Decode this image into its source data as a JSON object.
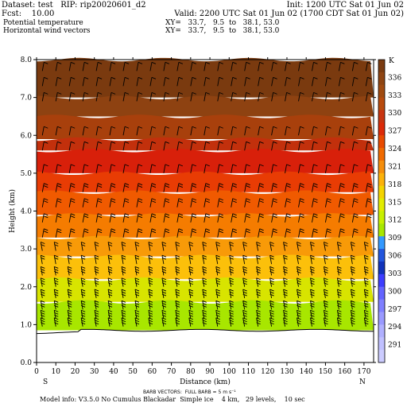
{
  "header": {
    "dataset": "Dataset: test   RIP: rip20020601_d2",
    "init": "Init: 1200 UTC Sat 01 Jun 02",
    "fcst": "Fcst:    10.00",
    "valid": "Valid: 2200 UTC Sat 01 Jun 02 (1700 CDT Sat 01 Jun 02)",
    "field1": "Potential temperature",
    "field1_xy": "XY=   33.7,   9.5  to   38.1, 53.0",
    "field2": "Horizontal wind vectors",
    "field2_xy": "XY=   33.7,   9.5  to   38.1, 53.0"
  },
  "footer": {
    "barb_note": "BARB VECTORS:  FULL BARB = 5 m s⁻¹",
    "model_info": "Model info: V3.5.0 No Cumulus Blackadar  Simple ice    4 km,   29 levels,    10 sec"
  },
  "chart_data": {
    "type": "heatmap",
    "title": "Potential temperature",
    "xlabel": "Distance (km)",
    "ylabel": "Height (km)",
    "xlim": [
      0,
      175
    ],
    "ylim": [
      0,
      8.0
    ],
    "x_ticks": [
      "0",
      "10",
      "20",
      "30",
      "40",
      "50",
      "60",
      "70",
      "80",
      "90",
      "100",
      "110",
      "120",
      "130",
      "140",
      "150",
      "160",
      "170"
    ],
    "x_tick_values": [
      0,
      10,
      20,
      30,
      40,
      50,
      60,
      70,
      80,
      90,
      100,
      110,
      120,
      130,
      140,
      150,
      160,
      170
    ],
    "y_ticks": [
      "0.0",
      "1.0",
      "2.0",
      "3.0",
      "4.0",
      "5.0",
      "6.0",
      "7.0",
      "8.0"
    ],
    "y_tick_values": [
      0,
      1,
      2,
      3,
      4,
      5,
      6,
      7,
      8
    ],
    "x_end_labels": {
      "left": "S",
      "right": "N"
    },
    "colorbar": {
      "unit": "K",
      "labels": [
        "336",
        "333",
        "330",
        "327",
        "324",
        "321",
        "318",
        "315",
        "312",
        "309",
        "306",
        "303",
        "300",
        "297",
        "294",
        "291"
      ],
      "colors": [
        "#7a3b10",
        "#8e4412",
        "#a04a10",
        "#b84a0d",
        "#c83410",
        "#dc2a08",
        "#e84a00",
        "#f06a00",
        "#f58e0c",
        "#fcb20a",
        "#f4d400",
        "#e2ec00",
        "#c8f000",
        "#a8e800",
        "#3399ff",
        "#2255dd",
        "#1133bb",
        "#3d3dff",
        "#6464ff",
        "#8080ff",
        "#9a9aff",
        "#b0b0ff",
        "#c0c0ff",
        "#ccccff"
      ]
    },
    "theta_layers": [
      {
        "z0": 7.0,
        "z1": 8.0,
        "theta": 336
      },
      {
        "z0": 6.5,
        "z1": 7.0,
        "theta": 333
      },
      {
        "z0": 5.9,
        "z1": 6.5,
        "theta": 330
      },
      {
        "z0": 5.6,
        "z1": 5.9,
        "theta": 327
      },
      {
        "z0": 5.0,
        "z1": 5.6,
        "theta": 324
      },
      {
        "z0": 4.5,
        "z1": 5.0,
        "theta": 321
      },
      {
        "z0": 3.9,
        "z1": 4.5,
        "theta": 318
      },
      {
        "z0": 3.3,
        "z1": 3.9,
        "theta": 315
      },
      {
        "z0": 2.8,
        "z1": 3.3,
        "theta": 312
      },
      {
        "z0": 2.2,
        "z1": 2.8,
        "theta": 309
      },
      {
        "z0": 1.6,
        "z1": 2.2,
        "theta": 306
      },
      {
        "z0": 0.85,
        "z1": 1.6,
        "theta": 303
      }
    ],
    "terrain_height_km": 0.85,
    "barb_columns_km": [
      3,
      10,
      17,
      24,
      31,
      38,
      45,
      52,
      59,
      66,
      73,
      80,
      87,
      94,
      101,
      108,
      115,
      122,
      129,
      136,
      143,
      150,
      157,
      164,
      171
    ],
    "barb_levels_km": [
      0.95,
      1.15,
      1.4,
      1.7,
      2.0,
      2.3,
      2.6,
      2.95,
      3.3,
      3.7,
      4.1,
      4.5,
      5.0,
      5.6,
      6.0,
      6.9,
      7.3,
      7.7
    ],
    "barb_note": "BARB VECTORS:  FULL BARB = 5 m s-1"
  }
}
